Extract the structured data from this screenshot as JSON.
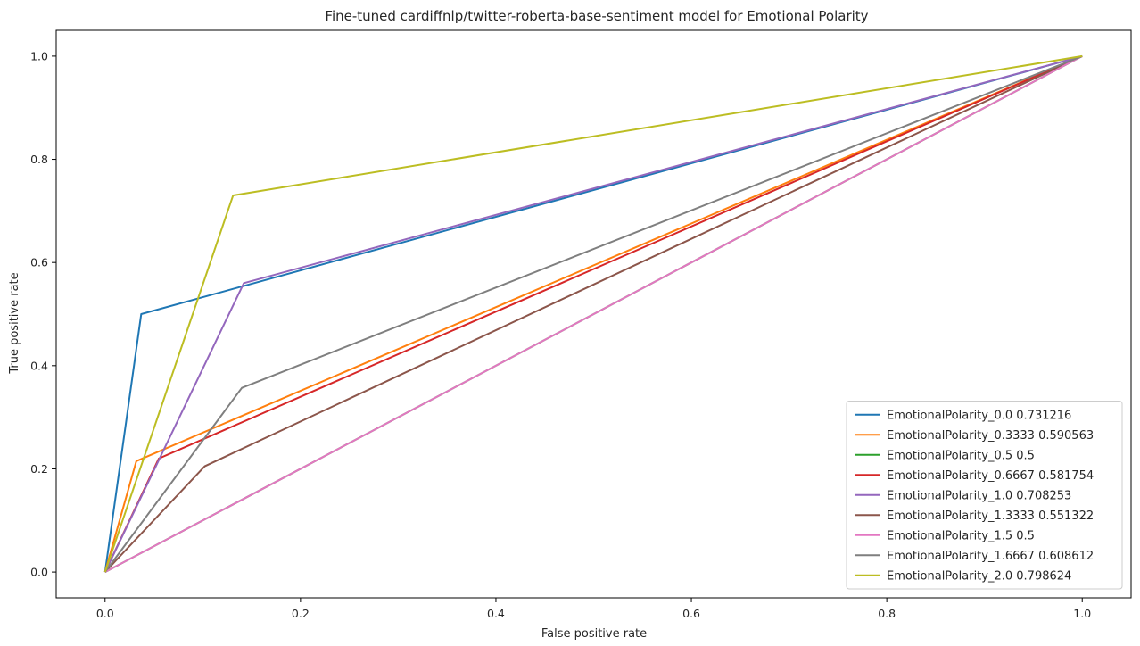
{
  "chart_data": {
    "type": "line",
    "title": "Fine-tuned cardiffnlp/twitter-roberta-base-sentiment model for Emotional Polarity",
    "xlabel": "False positive rate",
    "ylabel": "True positive rate",
    "xlim": [
      -0.05,
      1.05
    ],
    "ylim": [
      -0.05,
      1.05
    ],
    "xticks": [
      0.0,
      0.2,
      0.4,
      0.6,
      0.8,
      1.0
    ],
    "yticks": [
      0.0,
      0.2,
      0.4,
      0.6,
      0.8,
      1.0
    ],
    "xtick_labels": [
      "0.0",
      "0.2",
      "0.4",
      "0.6",
      "0.8",
      "1.0"
    ],
    "ytick_labels": [
      "0.0",
      "0.2",
      "0.4",
      "0.6",
      "0.8",
      "1.0"
    ],
    "grid": false,
    "legend_position": "lower-right",
    "series": [
      {
        "name": "EmotionalPolarity_0.0 0.731216",
        "color": "#1f77b4",
        "x": [
          0,
          0.037,
          1
        ],
        "y": [
          0,
          0.5,
          1
        ]
      },
      {
        "name": "EmotionalPolarity_0.3333 0.590563",
        "color": "#ff7f0e",
        "x": [
          0,
          0.032,
          1
        ],
        "y": [
          0,
          0.215,
          1
        ]
      },
      {
        "name": "EmotionalPolarity_0.5 0.5",
        "color": "#2ca02c",
        "x": [
          0,
          1
        ],
        "y": [
          0,
          1
        ]
      },
      {
        "name": "EmotionalPolarity_0.6667 0.581754",
        "color": "#d62728",
        "x": [
          0,
          0.055,
          1
        ],
        "y": [
          0,
          0.22,
          1
        ]
      },
      {
        "name": "EmotionalPolarity_1.0 0.708253",
        "color": "#9467bd",
        "x": [
          0,
          0.142,
          1
        ],
        "y": [
          0,
          0.56,
          1
        ]
      },
      {
        "name": "EmotionalPolarity_1.3333 0.551322",
        "color": "#8c564b",
        "x": [
          0,
          0.102,
          1
        ],
        "y": [
          0,
          0.205,
          1
        ]
      },
      {
        "name": "EmotionalPolarity_1.5 0.5",
        "color": "#e377c2",
        "x": [
          0,
          1
        ],
        "y": [
          0,
          1
        ]
      },
      {
        "name": "EmotionalPolarity_1.6667 0.608612",
        "color": "#7f7f7f",
        "x": [
          0,
          0.14,
          1
        ],
        "y": [
          0,
          0.357,
          1
        ]
      },
      {
        "name": "EmotionalPolarity_2.0 0.798624",
        "color": "#bcbd22",
        "x": [
          0,
          0.131,
          1
        ],
        "y": [
          0,
          0.73,
          1
        ]
      }
    ]
  }
}
